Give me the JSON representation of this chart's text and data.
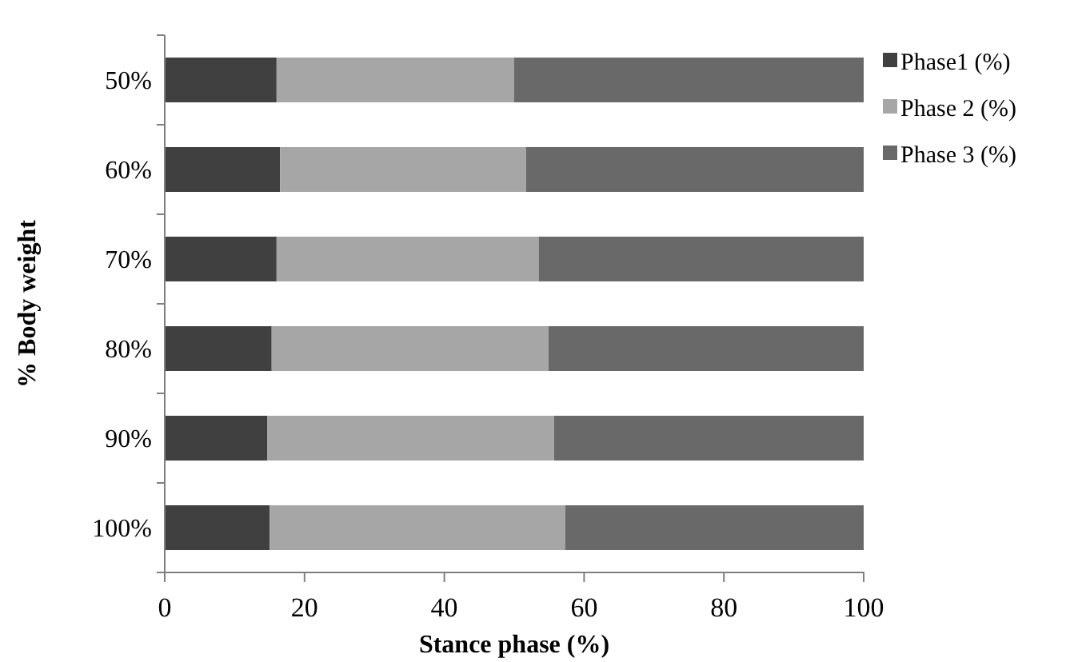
{
  "chart_data": {
    "type": "bar",
    "orientation": "horizontal",
    "stacked": true,
    "xlabel": "Stance phase (%)",
    "ylabel": "% Body weight",
    "categories": [
      "50%",
      "60%",
      "70%",
      "80%",
      "90%",
      "100%"
    ],
    "series": [
      {
        "name": "Phase1 (%)",
        "color": "#404040",
        "values": [
          16,
          16.5,
          16,
          15.3,
          14.7,
          15
        ]
      },
      {
        "name": "Phase 2 (%)",
        "color": "#a6a6a6",
        "values": [
          34,
          35.2,
          37.5,
          39.6,
          41,
          42.3
        ]
      },
      {
        "name": "Phase 3 (%)",
        "color": "#696969",
        "values": [
          50,
          48.3,
          46.5,
          45.1,
          44.3,
          42.7
        ]
      }
    ],
    "xlim": [
      0,
      100
    ],
    "xticks": [
      0,
      20,
      40,
      60,
      80,
      100
    ],
    "legend": "right",
    "grid": false
  }
}
